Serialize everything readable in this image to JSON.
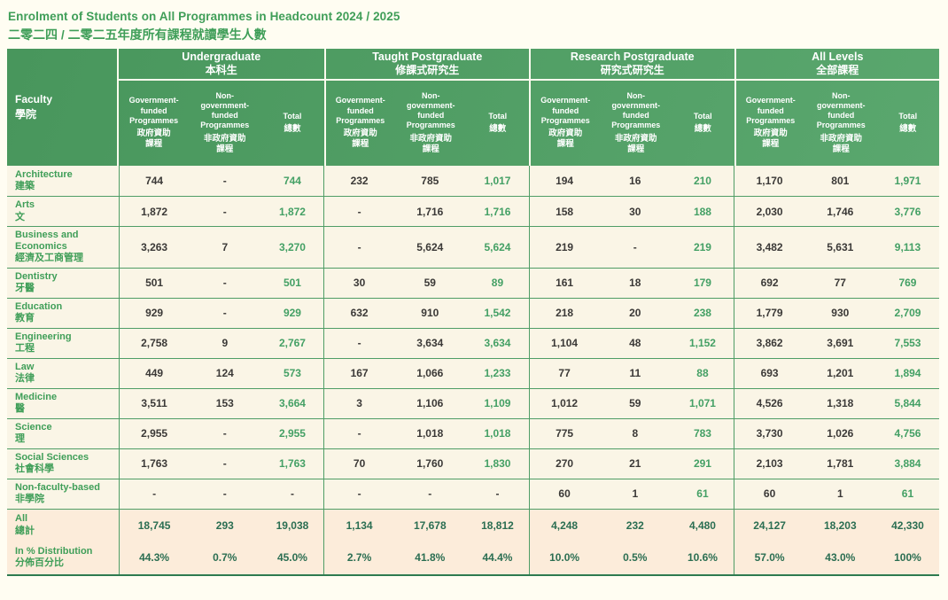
{
  "page": {
    "title": "Enrolment of Students on All Programmes in Headcount 2024 / 2025",
    "subtitle": "二零二四 / 二零二五年度所有課程就讀學生人數"
  },
  "colors": {
    "page_bg": "#fffdf2",
    "cell_cream": "#faf5e6",
    "summary_peach": "#fcecda",
    "hdr_start": "#48965c",
    "hdr_end": "#5aa76e",
    "grid_green": "#4f9d66",
    "accent_green": "#3f9e58",
    "total_green": "#44a065",
    "summary_green": "#2b6e52",
    "value_dark": "#3b3937",
    "bottom_border": "#2e7a50"
  },
  "table": {
    "faculty_header": {
      "en": "Faculty",
      "zh": "學院"
    },
    "groups": [
      {
        "en": "Undergraduate",
        "zh": "本科生"
      },
      {
        "en": "Taught Postgraduate",
        "zh": "修課式研究生"
      },
      {
        "en": "Research Postgraduate",
        "zh": "研究式研究生"
      },
      {
        "en": "All Levels",
        "zh": "全部課程"
      }
    ],
    "subcolumns": [
      {
        "en": "Government-funded Programmes",
        "zh": "政府資助\n課程"
      },
      {
        "en": "Non-government-funded Programmes",
        "zh": "非政府資助\n課程"
      },
      {
        "en": "Total",
        "zh": "總數"
      }
    ],
    "rows": [
      {
        "faculty_en": "Architecture",
        "faculty_zh": "建築",
        "values": [
          "744",
          "-",
          "744",
          "232",
          "785",
          "1,017",
          "194",
          "16",
          "210",
          "1,170",
          "801",
          "1,971"
        ]
      },
      {
        "faculty_en": "Arts",
        "faculty_zh": "文",
        "values": [
          "1,872",
          "-",
          "1,872",
          "-",
          "1,716",
          "1,716",
          "158",
          "30",
          "188",
          "2,030",
          "1,746",
          "3,776"
        ]
      },
      {
        "faculty_en": "Business and Economics",
        "faculty_zh": "經濟及工商管理",
        "values": [
          "3,263",
          "7",
          "3,270",
          "-",
          "5,624",
          "5,624",
          "219",
          "-",
          "219",
          "3,482",
          "5,631",
          "9,113"
        ]
      },
      {
        "faculty_en": "Dentistry",
        "faculty_zh": "牙醫",
        "values": [
          "501",
          "-",
          "501",
          "30",
          "59",
          "89",
          "161",
          "18",
          "179",
          "692",
          "77",
          "769"
        ]
      },
      {
        "faculty_en": "Education",
        "faculty_zh": "教育",
        "values": [
          "929",
          "-",
          "929",
          "632",
          "910",
          "1,542",
          "218",
          "20",
          "238",
          "1,779",
          "930",
          "2,709"
        ]
      },
      {
        "faculty_en": "Engineering",
        "faculty_zh": "工程",
        "values": [
          "2,758",
          "9",
          "2,767",
          "-",
          "3,634",
          "3,634",
          "1,104",
          "48",
          "1,152",
          "3,862",
          "3,691",
          "7,553"
        ]
      },
      {
        "faculty_en": "Law",
        "faculty_zh": "法律",
        "values": [
          "449",
          "124",
          "573",
          "167",
          "1,066",
          "1,233",
          "77",
          "11",
          "88",
          "693",
          "1,201",
          "1,894"
        ]
      },
      {
        "faculty_en": "Medicine",
        "faculty_zh": "醫",
        "values": [
          "3,511",
          "153",
          "3,664",
          "3",
          "1,106",
          "1,109",
          "1,012",
          "59",
          "1,071",
          "4,526",
          "1,318",
          "5,844"
        ]
      },
      {
        "faculty_en": "Science",
        "faculty_zh": "理",
        "values": [
          "2,955",
          "-",
          "2,955",
          "-",
          "1,018",
          "1,018",
          "775",
          "8",
          "783",
          "3,730",
          "1,026",
          "4,756"
        ]
      },
      {
        "faculty_en": "Social Sciences",
        "faculty_zh": "社會科學",
        "values": [
          "1,763",
          "-",
          "1,763",
          "70",
          "1,760",
          "1,830",
          "270",
          "21",
          "291",
          "2,103",
          "1,781",
          "3,884"
        ]
      },
      {
        "faculty_en": "Non-faculty-based",
        "faculty_zh": "非學院",
        "values": [
          "-",
          "-",
          "-",
          "-",
          "-",
          "-",
          "60",
          "1",
          "61",
          "60",
          "1",
          "61"
        ]
      }
    ],
    "summary_rows": [
      {
        "faculty_en": "All",
        "faculty_zh": "總計",
        "values": [
          "18,745",
          "293",
          "19,038",
          "1,134",
          "17,678",
          "18,812",
          "4,248",
          "232",
          "4,480",
          "24,127",
          "18,203",
          "42,330"
        ]
      },
      {
        "faculty_en": "In % Distribution",
        "faculty_zh": "分佈百分比",
        "values": [
          "44.3%",
          "0.7%",
          "45.0%",
          "2.7%",
          "41.8%",
          "44.4%",
          "10.0%",
          "0.5%",
          "10.6%",
          "57.0%",
          "43.0%",
          "100%"
        ]
      }
    ]
  }
}
